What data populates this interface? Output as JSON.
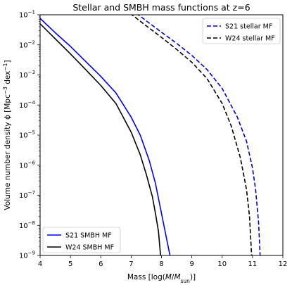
{
  "chart_data": {
    "type": "line",
    "title": "Stellar and SMBH mass functions at z=6",
    "xlabel_parts": [
      "Mass [log(",
      "M",
      "/",
      "M",
      "sun",
      ")]"
    ],
    "ylabel_parts": [
      "Volume number density ϕ [Mpc",
      "−3",
      " dex",
      "−1",
      "]"
    ],
    "xlim": [
      4,
      12
    ],
    "ylim_log10": [
      -9,
      -1
    ],
    "y_scale": "log",
    "x_ticks": [
      "4",
      "5",
      "6",
      "7",
      "8",
      "9",
      "10",
      "11",
      "12"
    ],
    "y_tick_exponents": [
      -9,
      -8,
      -7,
      -6,
      -5,
      -4,
      -3,
      -2,
      -1
    ],
    "legends": [
      {
        "position": "top-right",
        "entries": [
          "S21 stellar MF",
          "W24 stellar MF"
        ]
      },
      {
        "position": "bottom-left",
        "entries": [
          "S21 SMBH MF",
          "W24 SMBH MF"
        ]
      }
    ],
    "series": [
      {
        "name": "S21 stellar MF",
        "color": "#0000cc",
        "dash": "dashed",
        "x": [
          7.0,
          7.5,
          8.0,
          8.5,
          9.0,
          9.5,
          10.0,
          10.5,
          10.8,
          11.0,
          11.1,
          11.2,
          11.25
        ],
        "logy": [
          -0.82,
          -1.2,
          -1.58,
          -1.95,
          -2.35,
          -2.82,
          -3.45,
          -4.4,
          -5.2,
          -6.1,
          -6.8,
          -7.9,
          -9.0
        ]
      },
      {
        "name": "W24 stellar MF",
        "color": "#000000",
        "dash": "dashed",
        "x": [
          6.8,
          7.0,
          7.5,
          8.0,
          8.5,
          9.0,
          9.5,
          10.0,
          10.3,
          10.6,
          10.8,
          10.9,
          10.97
        ],
        "logy": [
          -0.82,
          -0.98,
          -1.37,
          -1.75,
          -2.15,
          -2.58,
          -3.12,
          -3.95,
          -4.7,
          -5.75,
          -6.8,
          -7.7,
          -9.0
        ]
      },
      {
        "name": "S21 SMBH MF",
        "color": "#0000ff",
        "dash": "solid",
        "x": [
          4.0,
          4.5,
          5.0,
          5.5,
          6.0,
          6.5,
          7.0,
          7.3,
          7.6,
          7.8,
          8.0,
          8.1,
          8.2,
          8.28
        ],
        "logy": [
          -1.12,
          -1.6,
          -2.05,
          -2.55,
          -3.05,
          -3.6,
          -4.4,
          -5.0,
          -5.85,
          -6.6,
          -7.6,
          -8.1,
          -8.6,
          -9.0
        ]
      },
      {
        "name": "W24 SMBH MF",
        "color": "#000000",
        "dash": "solid",
        "x": [
          4.0,
          4.5,
          5.0,
          5.5,
          6.0,
          6.5,
          7.0,
          7.3,
          7.5,
          7.7,
          7.8,
          7.9,
          7.97
        ],
        "logy": [
          -1.3,
          -1.8,
          -2.3,
          -2.82,
          -3.35,
          -3.95,
          -4.9,
          -5.65,
          -6.3,
          -7.05,
          -7.6,
          -8.2,
          -9.0
        ]
      }
    ]
  }
}
